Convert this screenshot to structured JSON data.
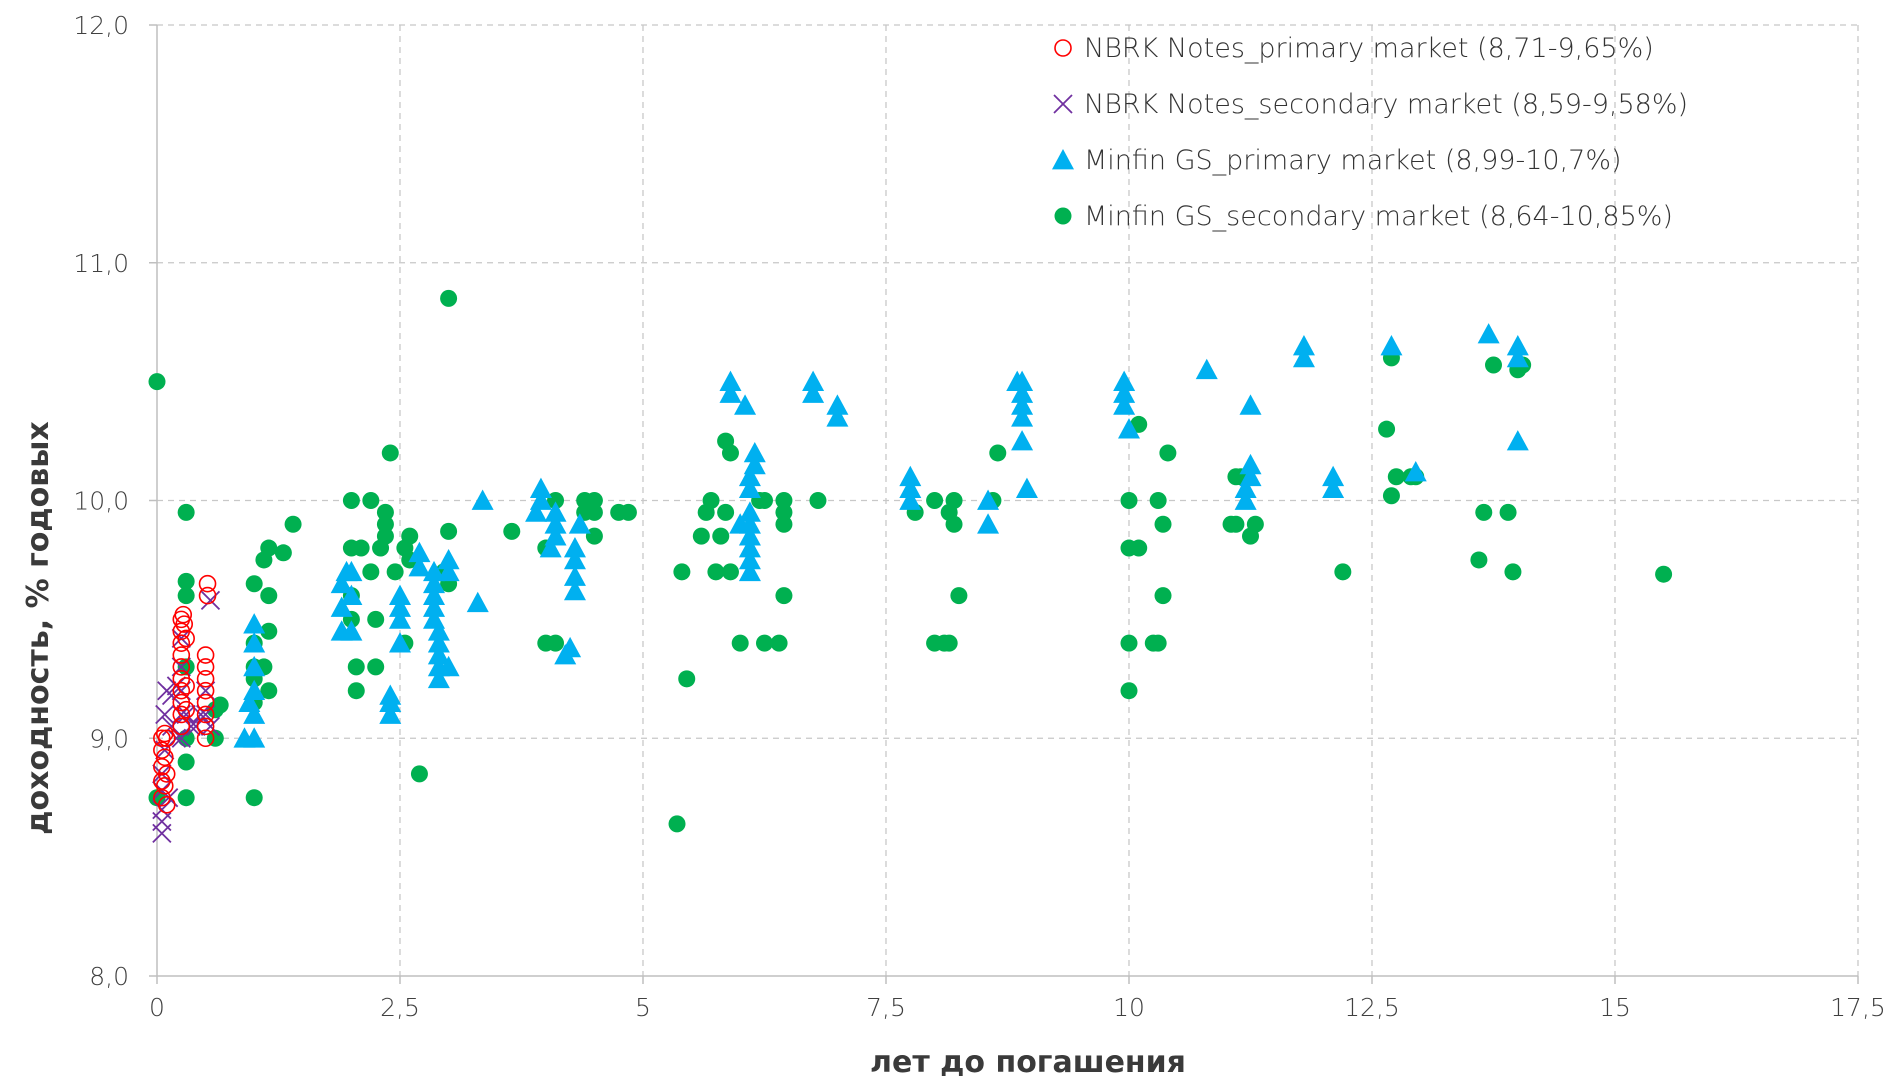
{
  "chart_data": {
    "type": "scatter",
    "title": "",
    "xlabel": "лет до погашения",
    "ylabel": "доходность, % годовых",
    "xlim": [
      0,
      17.5
    ],
    "ylim": [
      8.0,
      12.0
    ],
    "x_ticks": [
      "0",
      "2,5",
      "5",
      "7,5",
      "10",
      "12,5",
      "15",
      "17,5"
    ],
    "y_ticks": [
      "8,0",
      "9,0",
      "10,0",
      "11,0",
      "12,0"
    ],
    "grid": true,
    "legend_position": "top-right",
    "series": [
      {
        "name": "NBRK Notes_primary market (8,71-9,65%)",
        "marker": "circle-open",
        "color": "#ff0000",
        "points": [
          [
            0.05,
            8.75
          ],
          [
            0.05,
            8.82
          ],
          [
            0.05,
            8.88
          ],
          [
            0.05,
            8.95
          ],
          [
            0.05,
            9.0
          ],
          [
            0.08,
            8.8
          ],
          [
            0.08,
            8.92
          ],
          [
            0.08,
            9.02
          ],
          [
            0.1,
            8.72
          ],
          [
            0.1,
            8.85
          ],
          [
            0.1,
            9.0
          ],
          [
            0.25,
            9.05
          ],
          [
            0.25,
            9.1
          ],
          [
            0.25,
            9.15
          ],
          [
            0.25,
            9.2
          ],
          [
            0.25,
            9.25
          ],
          [
            0.25,
            9.3
          ],
          [
            0.25,
            9.35
          ],
          [
            0.25,
            9.4
          ],
          [
            0.25,
            9.45
          ],
          [
            0.25,
            9.5
          ],
          [
            0.27,
            9.52
          ],
          [
            0.28,
            9.48
          ],
          [
            0.3,
            9.12
          ],
          [
            0.3,
            9.22
          ],
          [
            0.3,
            9.42
          ],
          [
            0.5,
            9.0
          ],
          [
            0.5,
            9.05
          ],
          [
            0.5,
            9.1
          ],
          [
            0.5,
            9.15
          ],
          [
            0.5,
            9.2
          ],
          [
            0.5,
            9.25
          ],
          [
            0.5,
            9.3
          ],
          [
            0.5,
            9.35
          ],
          [
            0.52,
            9.6
          ],
          [
            0.52,
            9.65
          ]
        ]
      },
      {
        "name": "NBRK Notes_secondary market (8,59-9,58%)",
        "marker": "x",
        "color": "#7030a0",
        "points": [
          [
            0.05,
            8.6
          ],
          [
            0.05,
            8.65
          ],
          [
            0.05,
            8.7
          ],
          [
            0.05,
            8.78
          ],
          [
            0.05,
            8.85
          ],
          [
            0.08,
            8.95
          ],
          [
            0.08,
            9.1
          ],
          [
            0.1,
            9.2
          ],
          [
            0.12,
            8.75
          ],
          [
            0.15,
            9.05
          ],
          [
            0.15,
            9.18
          ],
          [
            0.2,
            9.0
          ],
          [
            0.2,
            9.22
          ],
          [
            0.25,
            9.0
          ],
          [
            0.25,
            9.1
          ],
          [
            0.25,
            9.2
          ],
          [
            0.25,
            9.3
          ],
          [
            0.25,
            9.42
          ],
          [
            0.3,
            9.1
          ],
          [
            0.35,
            9.05
          ],
          [
            0.4,
            9.05
          ],
          [
            0.45,
            9.1
          ],
          [
            0.5,
            9.1
          ],
          [
            0.5,
            9.2
          ],
          [
            0.55,
            9.05
          ],
          [
            0.55,
            9.58
          ]
        ]
      },
      {
        "name": "Minfin GS_primary market (8,99-10,7%)",
        "marker": "triangle",
        "color": "#00b0f0",
        "points": [
          [
            0.9,
            9.0
          ],
          [
            0.95,
            9.15
          ],
          [
            1.0,
            9.0
          ],
          [
            1.0,
            9.1
          ],
          [
            1.0,
            9.2
          ],
          [
            1.0,
            9.3
          ],
          [
            1.0,
            9.4
          ],
          [
            1.0,
            9.48
          ],
          [
            1.9,
            9.45
          ],
          [
            1.9,
            9.55
          ],
          [
            1.9,
            9.65
          ],
          [
            1.95,
            9.7
          ],
          [
            2.0,
            9.45
          ],
          [
            2.0,
            9.6
          ],
          [
            2.0,
            9.7
          ],
          [
            2.4,
            9.1
          ],
          [
            2.4,
            9.15
          ],
          [
            2.4,
            9.18
          ],
          [
            2.5,
            9.4
          ],
          [
            2.5,
            9.5
          ],
          [
            2.5,
            9.55
          ],
          [
            2.5,
            9.6
          ],
          [
            2.7,
            9.72
          ],
          [
            2.7,
            9.78
          ],
          [
            2.85,
            9.5
          ],
          [
            2.85,
            9.55
          ],
          [
            2.85,
            9.6
          ],
          [
            2.85,
            9.65
          ],
          [
            2.85,
            9.7
          ],
          [
            2.9,
            9.25
          ],
          [
            2.9,
            9.3
          ],
          [
            2.9,
            9.35
          ],
          [
            2.9,
            9.4
          ],
          [
            2.9,
            9.45
          ],
          [
            3.0,
            9.3
          ],
          [
            3.0,
            9.7
          ],
          [
            3.0,
            9.75
          ],
          [
            3.3,
            9.57
          ],
          [
            3.35,
            10.0
          ],
          [
            3.9,
            9.95
          ],
          [
            3.95,
            10.0
          ],
          [
            3.95,
            10.05
          ],
          [
            4.05,
            9.8
          ],
          [
            4.1,
            9.85
          ],
          [
            4.1,
            9.9
          ],
          [
            4.1,
            9.95
          ],
          [
            4.2,
            9.35
          ],
          [
            4.25,
            9.38
          ],
          [
            4.3,
            9.62
          ],
          [
            4.3,
            9.68
          ],
          [
            4.3,
            9.75
          ],
          [
            4.3,
            9.8
          ],
          [
            4.35,
            9.9
          ],
          [
            5.9,
            10.45
          ],
          [
            5.9,
            10.5
          ],
          [
            6.0,
            9.9
          ],
          [
            6.05,
            10.4
          ],
          [
            6.1,
            9.7
          ],
          [
            6.1,
            9.75
          ],
          [
            6.1,
            9.8
          ],
          [
            6.1,
            9.85
          ],
          [
            6.1,
            9.9
          ],
          [
            6.1,
            9.95
          ],
          [
            6.1,
            10.05
          ],
          [
            6.1,
            10.1
          ],
          [
            6.15,
            10.15
          ],
          [
            6.15,
            10.2
          ],
          [
            6.75,
            10.45
          ],
          [
            6.75,
            10.5
          ],
          [
            7.0,
            10.35
          ],
          [
            7.0,
            10.4
          ],
          [
            7.75,
            10.1
          ],
          [
            7.75,
            10.05
          ],
          [
            7.75,
            10.0
          ],
          [
            8.55,
            9.9
          ],
          [
            8.55,
            10.0
          ],
          [
            8.85,
            10.5
          ],
          [
            8.9,
            10.45
          ],
          [
            8.9,
            10.4
          ],
          [
            8.9,
            10.35
          ],
          [
            8.9,
            10.5
          ],
          [
            8.9,
            10.25
          ],
          [
            8.95,
            10.05
          ],
          [
            9.95,
            10.5
          ],
          [
            9.95,
            10.45
          ],
          [
            9.95,
            10.4
          ],
          [
            10.0,
            10.3
          ],
          [
            10.8,
            10.55
          ],
          [
            11.2,
            10.0
          ],
          [
            11.2,
            10.05
          ],
          [
            11.25,
            10.1
          ],
          [
            11.25,
            10.15
          ],
          [
            11.25,
            10.4
          ],
          [
            11.8,
            10.6
          ],
          [
            11.8,
            10.65
          ],
          [
            12.1,
            10.05
          ],
          [
            12.1,
            10.1
          ],
          [
            12.7,
            10.65
          ],
          [
            12.95,
            10.12
          ],
          [
            13.7,
            10.7
          ],
          [
            14.0,
            10.65
          ],
          [
            14.0,
            10.6
          ],
          [
            14.0,
            10.25
          ]
        ]
      },
      {
        "name": "Minfin GS_secondary market (8,64-10,85%)",
        "marker": "circle",
        "color": "#00b050",
        "points": [
          [
            0.0,
            10.5
          ],
          [
            0.0,
            8.75
          ],
          [
            0.3,
            9.95
          ],
          [
            0.3,
            9.6
          ],
          [
            0.3,
            9.66
          ],
          [
            0.3,
            9.3
          ],
          [
            0.3,
            9.0
          ],
          [
            0.3,
            8.9
          ],
          [
            0.3,
            8.75
          ],
          [
            0.6,
            9.0
          ],
          [
            0.6,
            9.12
          ],
          [
            0.65,
            9.14
          ],
          [
            1.0,
            9.65
          ],
          [
            1.0,
            9.4
          ],
          [
            1.0,
            9.3
          ],
          [
            1.0,
            9.25
          ],
          [
            1.0,
            9.15
          ],
          [
            1.0,
            8.75
          ],
          [
            1.1,
            9.3
          ],
          [
            1.1,
            9.75
          ],
          [
            1.15,
            9.8
          ],
          [
            1.15,
            9.6
          ],
          [
            1.15,
            9.45
          ],
          [
            1.15,
            9.2
          ],
          [
            1.3,
            9.78
          ],
          [
            1.4,
            9.9
          ],
          [
            2.0,
            10.0
          ],
          [
            2.0,
            9.8
          ],
          [
            2.0,
            9.6
          ],
          [
            2.0,
            9.5
          ],
          [
            2.05,
            9.3
          ],
          [
            2.05,
            9.2
          ],
          [
            2.1,
            9.8
          ],
          [
            2.2,
            9.7
          ],
          [
            2.2,
            10.0
          ],
          [
            2.25,
            9.5
          ],
          [
            2.25,
            9.3
          ],
          [
            2.3,
            9.8
          ],
          [
            2.35,
            9.85
          ],
          [
            2.35,
            9.95
          ],
          [
            2.35,
            9.9
          ],
          [
            2.4,
            10.2
          ],
          [
            2.45,
            9.7
          ],
          [
            2.55,
            9.4
          ],
          [
            2.55,
            9.8
          ],
          [
            2.6,
            9.85
          ],
          [
            2.6,
            9.75
          ],
          [
            2.7,
            8.85
          ],
          [
            2.95,
            9.7
          ],
          [
            3.0,
            9.65
          ],
          [
            3.0,
            9.87
          ],
          [
            3.0,
            10.85
          ],
          [
            3.65,
            9.87
          ],
          [
            4.0,
            9.8
          ],
          [
            4.0,
            9.4
          ],
          [
            4.1,
            10.0
          ],
          [
            4.1,
            9.4
          ],
          [
            4.4,
            9.95
          ],
          [
            4.4,
            10.0
          ],
          [
            4.5,
            10.0
          ],
          [
            4.5,
            9.95
          ],
          [
            4.5,
            9.85
          ],
          [
            4.75,
            9.95
          ],
          [
            4.85,
            9.95
          ],
          [
            5.35,
            8.64
          ],
          [
            5.4,
            9.7
          ],
          [
            5.45,
            9.25
          ],
          [
            5.6,
            9.85
          ],
          [
            5.65,
            9.95
          ],
          [
            5.7,
            10.0
          ],
          [
            5.75,
            9.7
          ],
          [
            5.8,
            9.85
          ],
          [
            5.85,
            9.95
          ],
          [
            5.85,
            10.25
          ],
          [
            5.9,
            10.2
          ],
          [
            5.9,
            9.7
          ],
          [
            6.0,
            9.4
          ],
          [
            6.2,
            10.0
          ],
          [
            6.25,
            10.0
          ],
          [
            6.25,
            9.4
          ],
          [
            6.4,
            9.4
          ],
          [
            6.45,
            10.0
          ],
          [
            6.45,
            9.95
          ],
          [
            6.45,
            9.9
          ],
          [
            6.45,
            9.6
          ],
          [
            6.8,
            10.0
          ],
          [
            7.8,
            9.95
          ],
          [
            8.0,
            10.0
          ],
          [
            8.0,
            9.4
          ],
          [
            8.1,
            9.4
          ],
          [
            8.15,
            9.95
          ],
          [
            8.15,
            9.4
          ],
          [
            8.2,
            10.0
          ],
          [
            8.2,
            9.9
          ],
          [
            8.25,
            9.6
          ],
          [
            8.6,
            10.0
          ],
          [
            8.65,
            10.2
          ],
          [
            10.0,
            10.0
          ],
          [
            10.0,
            9.8
          ],
          [
            10.0,
            9.4
          ],
          [
            10.0,
            9.2
          ],
          [
            10.1,
            9.8
          ],
          [
            10.1,
            10.32
          ],
          [
            10.25,
            9.4
          ],
          [
            10.3,
            9.4
          ],
          [
            10.3,
            10.0
          ],
          [
            10.35,
            9.9
          ],
          [
            10.35,
            9.6
          ],
          [
            10.4,
            10.2
          ],
          [
            11.05,
            9.9
          ],
          [
            11.1,
            10.1
          ],
          [
            11.1,
            9.9
          ],
          [
            11.15,
            10.1
          ],
          [
            11.25,
            9.85
          ],
          [
            11.3,
            9.9
          ],
          [
            12.2,
            9.7
          ],
          [
            12.65,
            10.3
          ],
          [
            12.7,
            10.6
          ],
          [
            12.7,
            10.02
          ],
          [
            12.75,
            10.1
          ],
          [
            12.9,
            10.1
          ],
          [
            12.95,
            10.1
          ],
          [
            13.6,
            9.75
          ],
          [
            13.65,
            9.95
          ],
          [
            13.75,
            10.57
          ],
          [
            13.9,
            9.95
          ],
          [
            13.95,
            9.7
          ],
          [
            14.0,
            10.55
          ],
          [
            14.05,
            10.57
          ],
          [
            15.5,
            9.69
          ]
        ]
      }
    ]
  }
}
